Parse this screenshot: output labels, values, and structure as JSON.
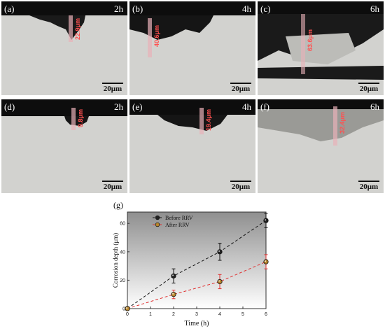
{
  "panels": [
    {
      "label": "(a)",
      "time": "2h",
      "scale": "20μm",
      "depth": "22.9μm"
    },
    {
      "label": "(b)",
      "time": "4h",
      "scale": "20μm",
      "depth": "40.6μm"
    },
    {
      "label": "(c)",
      "time": "6h",
      "scale": "20μm",
      "depth": "63.6μm"
    },
    {
      "label": "(d)",
      "time": "2h",
      "scale": "20μm",
      "depth": "9.8μm"
    },
    {
      "label": "(e)",
      "time": "4h",
      "scale": "20μm",
      "depth": "19.4μm"
    },
    {
      "label": "(f)",
      "time": "6h",
      "scale": "20μm",
      "depth": "32.4μm"
    }
  ],
  "chart_data": {
    "type": "line",
    "panel_label": "(g)",
    "xlabel": "Time (h)",
    "ylabel": "Corrosion depth (μm)",
    "xlim": [
      0,
      6
    ],
    "ylim": [
      0,
      68
    ],
    "xticks": [
      "0",
      "1",
      "2",
      "3",
      "4",
      "5",
      "6"
    ],
    "yticks": [
      "0",
      "20",
      "40",
      "60"
    ],
    "legend_position": "top-left",
    "series": [
      {
        "name": "Before RRV",
        "color": "#111111",
        "marker_fill": "#222222",
        "x": [
          0,
          2,
          4,
          6
        ],
        "y": [
          0,
          23,
          40,
          62
        ],
        "err": [
          0,
          5,
          6,
          5
        ]
      },
      {
        "name": "After RRV",
        "color": "#e03030",
        "marker_fill": "#b8862b",
        "x": [
          0,
          2,
          4,
          6
        ],
        "y": [
          0,
          10,
          19,
          33
        ],
        "err": [
          0,
          3,
          5,
          5
        ]
      }
    ]
  }
}
